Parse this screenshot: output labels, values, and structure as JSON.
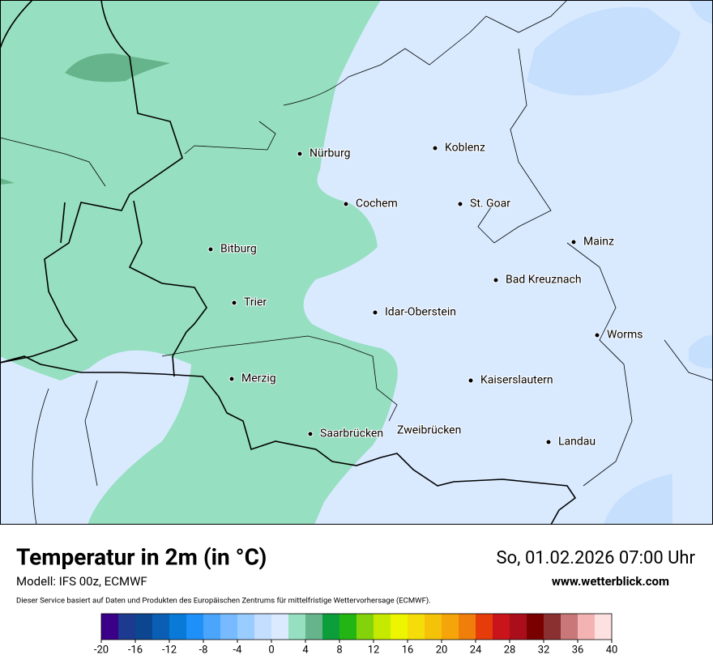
{
  "header": {
    "title": "Temperatur in 2m (in °C)",
    "model": "Modell: IFS 00z, ECMWF",
    "datetime": "So, 01.02.2026 07:00 Uhr",
    "website": "www.wetterblick.com",
    "disclaimer": "Dieser Service basiert auf Daten und Produkten des Europäischen Zentrums für mittelfristige Wettervorhersage (ECMWF)."
  },
  "map": {
    "cities": [
      "Nürburg",
      "Koblenz",
      "Cochem",
      "St. Goar",
      "Mainz",
      "Bitburg",
      "Bad Kreuznach",
      "Trier",
      "Idar-Oberstein",
      "Worms",
      "Merzig",
      "Kaiserslautern",
      "Saarbrücken",
      "Zweibrücken",
      "Landau"
    ]
  },
  "legend": {
    "colors": [
      "#3a0088",
      "#1c3a8f",
      "#0c4690",
      "#0a5fb5",
      "#0a7ad8",
      "#1e90f7",
      "#4aa5fb",
      "#78baff",
      "#99ccff",
      "#c4deff",
      "#dbeaff",
      "#96dfc0",
      "#66b48b",
      "#0c9e3a",
      "#22b514",
      "#84d20a",
      "#c6e900",
      "#eef500",
      "#f5dd0a",
      "#f5c20a",
      "#f5a50a",
      "#f07e0a",
      "#e63c0a",
      "#c8141a",
      "#aa0e1a",
      "#7a0000",
      "#8b3030",
      "#c87878",
      "#f4b3b3",
      "#fde0e0"
    ],
    "ticks": [
      -20,
      -16,
      -12,
      -8,
      -4,
      0,
      4,
      8,
      12,
      16,
      20,
      24,
      28,
      32,
      36,
      40
    ]
  }
}
